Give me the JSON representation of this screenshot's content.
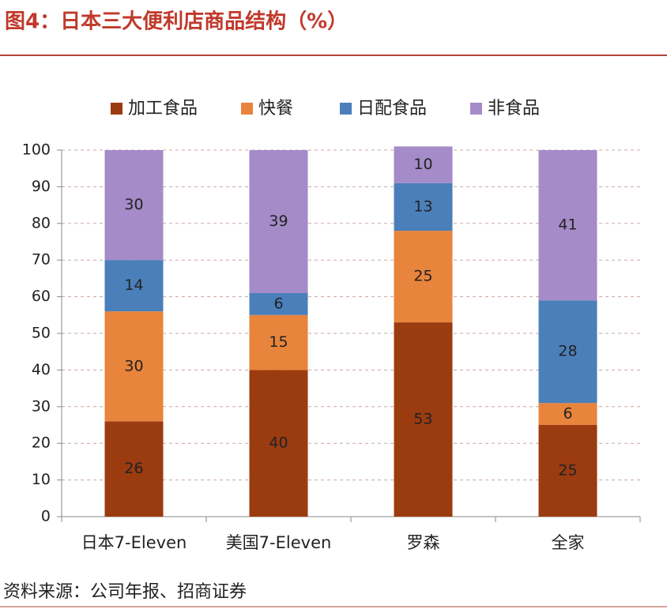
{
  "chart_data": {
    "type": "stacked-bar",
    "title": "图4：日本三大便利店商品结构（%）",
    "source": "资料来源：公司年报、招商证券",
    "categories": [
      "日本7-Eleven",
      "美国7-Eleven",
      "罗森",
      "全家"
    ],
    "series": [
      {
        "name": "加工食品",
        "color": "#9b3b10",
        "values": [
          26,
          40,
          53,
          25
        ]
      },
      {
        "name": "快餐",
        "color": "#e8843c",
        "values": [
          30,
          15,
          25,
          6
        ]
      },
      {
        "name": "日配食品",
        "color": "#4a7fba",
        "values": [
          14,
          6,
          13,
          28
        ]
      },
      {
        "name": "非食品",
        "color": "#a58bc8",
        "values": [
          30,
          39,
          10,
          41
        ]
      }
    ],
    "ylim": [
      0,
      100
    ],
    "yticks": [
      0,
      10,
      20,
      30,
      40,
      50,
      60,
      70,
      80,
      90,
      100
    ],
    "grid": true,
    "legend": "top"
  }
}
